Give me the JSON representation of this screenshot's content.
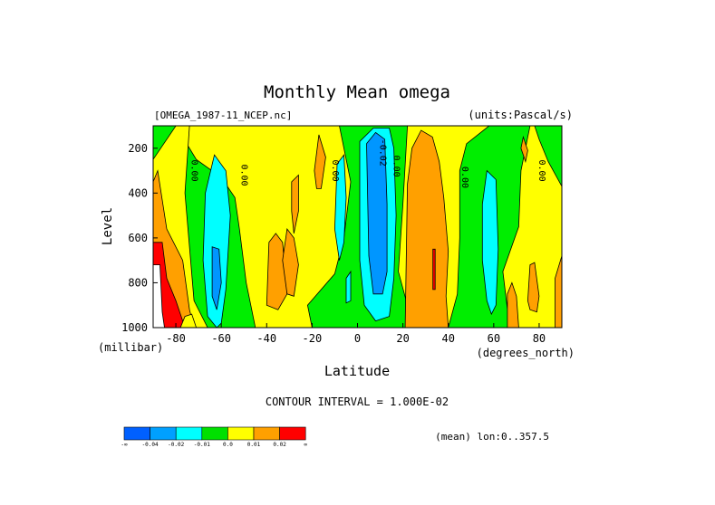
{
  "chart_data": {
    "type": "heatmap",
    "title": "Monthly Mean omega",
    "file_label": "[OMEGA_1987-11_NCEP.nc]",
    "units_label": "(units:Pascal/s)",
    "xlabel": "Latitude",
    "ylabel": "Level",
    "x_unit_label": "(degrees_north)",
    "y_unit_label": "(millibar)",
    "xlim": [
      -90,
      90
    ],
    "ylim": [
      1000,
      100
    ],
    "x_ticks": [
      -80,
      -60,
      -40,
      -20,
      0,
      20,
      40,
      60,
      80
    ],
    "y_ticks": [
      200,
      400,
      600,
      800,
      1000
    ],
    "contour_interval_text": "CONTOUR INTERVAL = 1.000E-02",
    "mean_text": "(mean) lon:0..357.5",
    "contour_labels": [
      {
        "lat": -73,
        "level": 300,
        "text": "0.00"
      },
      {
        "lat": -51,
        "level": 320,
        "text": "0.00"
      },
      {
        "lat": -11,
        "level": 300,
        "text": "0.00"
      },
      {
        "lat": 10,
        "level": 220,
        "text": "-0.02"
      },
      {
        "lat": 16,
        "level": 280,
        "text": "0.00"
      },
      {
        "lat": 46,
        "level": 330,
        "text": "0.00"
      },
      {
        "lat": 80,
        "level": 300,
        "text": "0.00"
      }
    ],
    "background_band": "#ffff00",
    "regions": [
      {
        "category": "green",
        "points": [
          [
            -90,
            100
          ],
          [
            -80,
            100
          ],
          [
            -71,
            250
          ],
          [
            -60,
            330
          ],
          [
            -54,
            420
          ],
          [
            -52,
            560
          ],
          [
            -49,
            800
          ],
          [
            -45,
            1000
          ],
          [
            -90,
            1000
          ]
        ]
      },
      {
        "category": "yellow",
        "points": [
          [
            -90,
            250
          ],
          [
            -80,
            100
          ],
          [
            -74,
            100
          ],
          [
            -76,
            400
          ],
          [
            -72,
            880
          ],
          [
            -66,
            1000
          ],
          [
            -90,
            1000
          ]
        ]
      },
      {
        "category": "orange",
        "points": [
          [
            -90,
            350
          ],
          [
            -88,
            300
          ],
          [
            -84,
            560
          ],
          [
            -77,
            700
          ],
          [
            -74,
            920
          ],
          [
            -72,
            1000
          ],
          [
            -90,
            1000
          ]
        ]
      },
      {
        "category": "red",
        "points": [
          [
            -90,
            700
          ],
          [
            -90,
            620
          ],
          [
            -86,
            620
          ],
          [
            -84,
            780
          ],
          [
            -80,
            880
          ],
          [
            -76,
            1000
          ],
          [
            -90,
            1000
          ]
        ]
      },
      {
        "category": "white",
        "points": [
          [
            -90,
            1000
          ],
          [
            -90,
            720
          ],
          [
            -87,
            720
          ],
          [
            -86,
            930
          ],
          [
            -85,
            1000
          ]
        ]
      },
      {
        "category": "yellow",
        "points": [
          [
            -78,
            1000
          ],
          [
            -76,
            950
          ],
          [
            -73,
            940
          ],
          [
            -71,
            1000
          ]
        ]
      },
      {
        "category": "green",
        "points": [
          [
            -20,
            1000
          ],
          [
            -22,
            900
          ],
          [
            -10,
            760
          ],
          [
            -6,
            600
          ],
          [
            -3,
            350
          ],
          [
            -8,
            100
          ],
          [
            -1,
            100
          ],
          [
            12,
            100
          ],
          [
            22,
            100
          ],
          [
            20,
            450
          ],
          [
            18,
            750
          ],
          [
            22,
            900
          ],
          [
            24,
            1000
          ]
        ]
      },
      {
        "category": "green",
        "points": [
          [
            40,
            1000
          ],
          [
            44,
            850
          ],
          [
            45,
            600
          ],
          [
            45,
            300
          ],
          [
            48,
            180
          ],
          [
            58,
            100
          ],
          [
            76,
            100
          ],
          [
            72,
            300
          ],
          [
            71,
            550
          ],
          [
            64,
            750
          ],
          [
            67,
            1000
          ]
        ]
      },
      {
        "category": "green",
        "points": [
          [
            78,
            100
          ],
          [
            90,
            100
          ],
          [
            90,
            370
          ],
          [
            84,
            260
          ],
          [
            80,
            160
          ]
        ]
      },
      {
        "category": "cyan",
        "points": [
          [
            -67,
            400
          ],
          [
            -63,
            230
          ],
          [
            -58,
            300
          ],
          [
            -56,
            500
          ],
          [
            -58,
            830
          ],
          [
            -60,
            980
          ],
          [
            -62,
            1000
          ],
          [
            -66,
            950
          ],
          [
            -68,
            700
          ]
        ]
      },
      {
        "category": "blue",
        "points": [
          [
            -64,
            640
          ],
          [
            -61,
            650
          ],
          [
            -60,
            800
          ],
          [
            -62,
            920
          ],
          [
            -64,
            860
          ]
        ]
      },
      {
        "category": "cyan",
        "points": [
          [
            -9,
            270
          ],
          [
            -6,
            230
          ],
          [
            -5,
            420
          ],
          [
            -6,
            620
          ],
          [
            -8,
            700
          ],
          [
            -10,
            560
          ]
        ]
      },
      {
        "category": "cyan",
        "points": [
          [
            -5,
            780
          ],
          [
            -3,
            750
          ],
          [
            -3,
            880
          ],
          [
            -5,
            890
          ]
        ]
      },
      {
        "category": "cyan",
        "points": [
          [
            1,
            170
          ],
          [
            7,
            110
          ],
          [
            14,
            110
          ],
          [
            16,
            200
          ],
          [
            17,
            500
          ],
          [
            16,
            780
          ],
          [
            14,
            950
          ],
          [
            8,
            970
          ],
          [
            3,
            900
          ],
          [
            1,
            700
          ]
        ]
      },
      {
        "category": "blue",
        "points": [
          [
            4,
            180
          ],
          [
            8,
            130
          ],
          [
            12,
            160
          ],
          [
            13,
            450
          ],
          [
            13,
            750
          ],
          [
            11,
            850
          ],
          [
            7,
            850
          ],
          [
            5,
            680
          ]
        ]
      },
      {
        "category": "cyan",
        "points": [
          [
            55,
            450
          ],
          [
            57,
            300
          ],
          [
            61,
            340
          ],
          [
            62,
            650
          ],
          [
            61,
            900
          ],
          [
            59,
            940
          ],
          [
            57,
            880
          ],
          [
            55,
            700
          ]
        ]
      },
      {
        "category": "orange",
        "points": [
          [
            21,
            1000
          ],
          [
            22,
            360
          ],
          [
            24,
            200
          ],
          [
            28,
            120
          ],
          [
            33,
            150
          ],
          [
            36,
            260
          ],
          [
            38,
            420
          ],
          [
            40,
            660
          ],
          [
            39,
            860
          ],
          [
            40,
            1000
          ]
        ]
      },
      {
        "category": "red",
        "points": [
          [
            33.2,
            650
          ],
          [
            34.2,
            650
          ],
          [
            34.2,
            830
          ],
          [
            33.2,
            830
          ]
        ]
      },
      {
        "category": "orange",
        "points": [
          [
            -40,
            900
          ],
          [
            -39,
            620
          ],
          [
            -36,
            580
          ],
          [
            -33,
            620
          ],
          [
            -31,
            850
          ],
          [
            -35,
            920
          ]
        ]
      },
      {
        "category": "orange",
        "points": [
          [
            -33,
            700
          ],
          [
            -31,
            560
          ],
          [
            -28,
            600
          ],
          [
            -26,
            720
          ],
          [
            -28,
            860
          ],
          [
            -31,
            850
          ]
        ]
      },
      {
        "category": "orange",
        "points": [
          [
            -19,
            300
          ],
          [
            -17,
            140
          ],
          [
            -14,
            240
          ],
          [
            -16,
            380
          ],
          [
            -18,
            380
          ]
        ]
      },
      {
        "category": "orange",
        "points": [
          [
            -29,
            350
          ],
          [
            -26,
            320
          ],
          [
            -26,
            480
          ],
          [
            -28,
            580
          ],
          [
            -29,
            480
          ]
        ]
      },
      {
        "category": "orange",
        "points": [
          [
            66,
            1000
          ],
          [
            66,
            850
          ],
          [
            68,
            800
          ],
          [
            70,
            860
          ],
          [
            71,
            1000
          ]
        ]
      },
      {
        "category": "orange",
        "points": [
          [
            75,
            880
          ],
          [
            76,
            720
          ],
          [
            78,
            710
          ],
          [
            80,
            860
          ],
          [
            79,
            930
          ],
          [
            76,
            920
          ]
        ]
      },
      {
        "category": "orange",
        "points": [
          [
            87,
            1000
          ],
          [
            87,
            780
          ],
          [
            90,
            680
          ],
          [
            90,
            1000
          ]
        ]
      },
      {
        "category": "orange",
        "points": [
          [
            72,
            200
          ],
          [
            73,
            150
          ],
          [
            75,
            210
          ],
          [
            74,
            260
          ]
        ]
      }
    ],
    "legend": {
      "colors": [
        "#0060ff",
        "#00a0ff",
        "#00ffff",
        "#00e000",
        "#ffff00",
        "#ffa000",
        "#ff0000"
      ],
      "labels": [
        "-∞",
        "-0.04",
        "-0.02",
        "-0.01",
        "0.0",
        "0.01",
        "0.02",
        "∞"
      ]
    },
    "category_colors": {
      "blue": "#0096ff",
      "cyan": "#00ffff",
      "green": "#00ee00",
      "yellow": "#ffff00",
      "orange": "#ffa000",
      "red": "#ff0000",
      "white": "#ffffff"
    }
  }
}
